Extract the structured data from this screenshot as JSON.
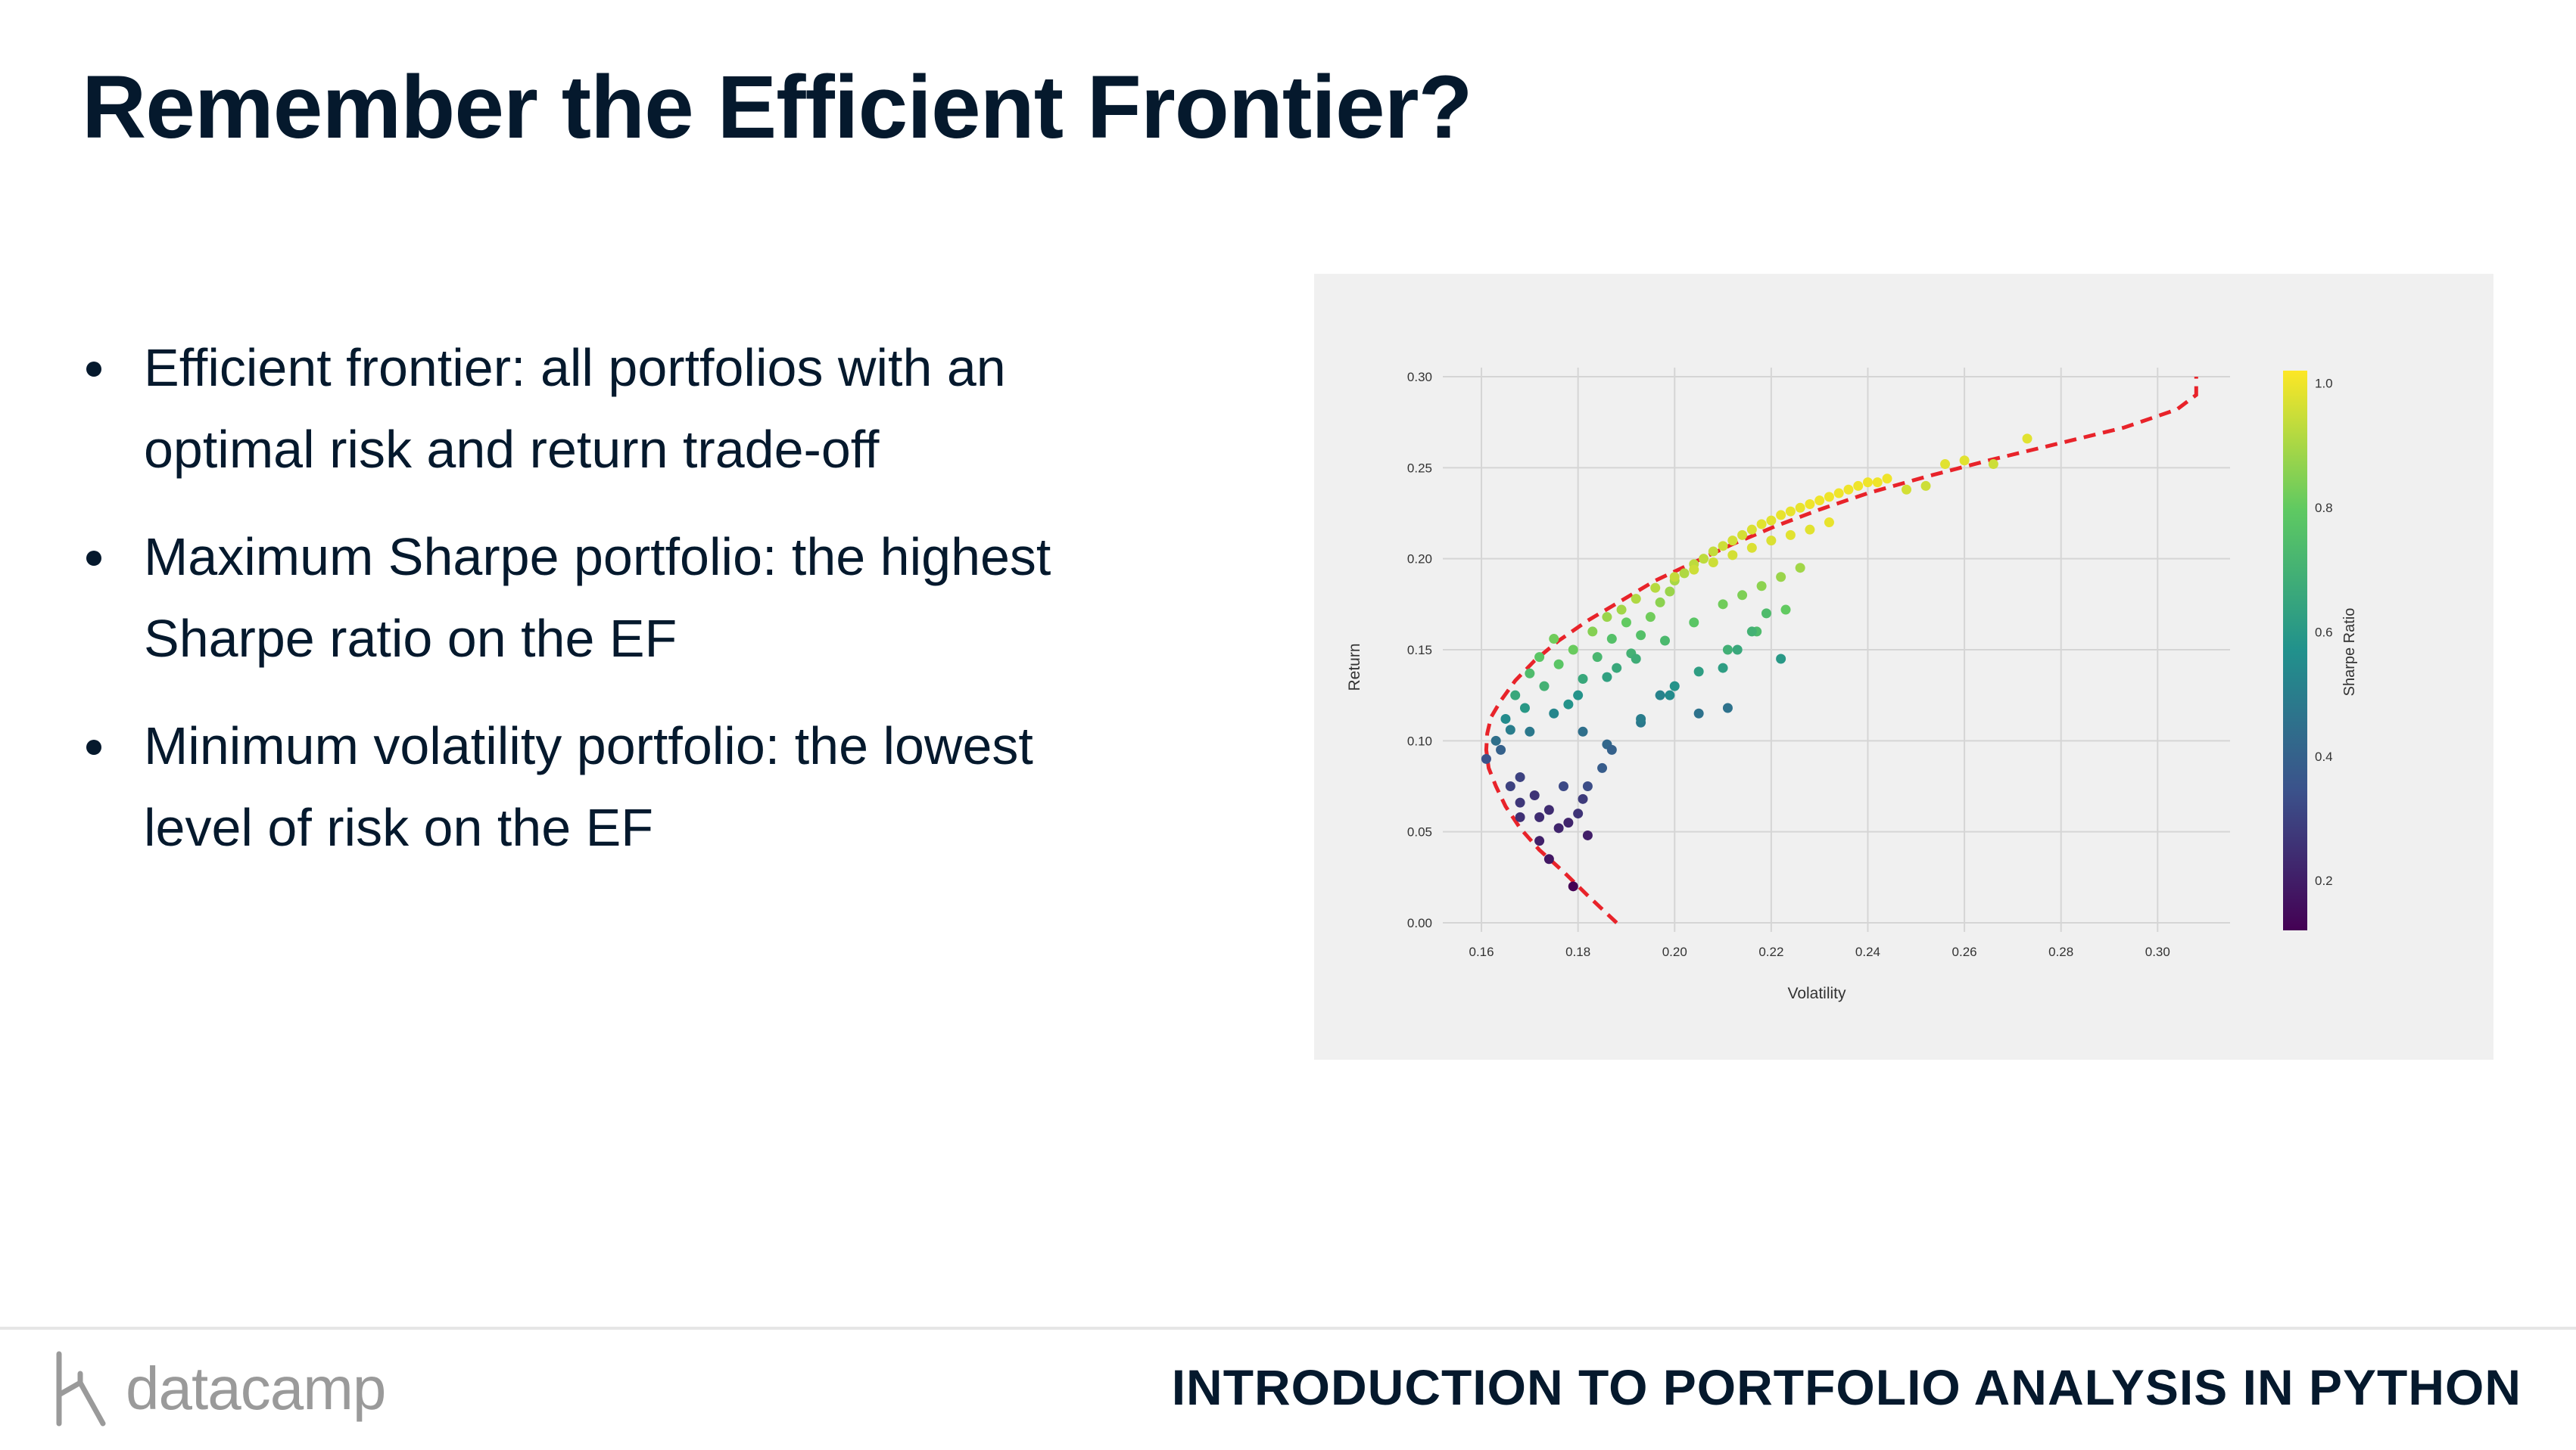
{
  "slide": {
    "title": "Remember the Efficient Frontier?",
    "bullets": [
      {
        "lines": [
          "Efficient frontier: all portfolios with an",
          "optimal risk and return trade-off"
        ]
      },
      {
        "lines": [
          "Maximum Sharpe portfolio: the highest",
          "Sharpe ratio on the EF"
        ]
      },
      {
        "lines": [
          "Minimum volatility portfolio: the lowest",
          "level of risk on the EF"
        ]
      }
    ]
  },
  "footer": {
    "logo_text": "datacamp",
    "course_title": "INTRODUCTION TO PORTFOLIO ANALYSIS IN PYTHON"
  },
  "colors": {
    "title": "#05192d",
    "panel_bg": "#f0f0f0",
    "frontier_line": "#e8232a",
    "grid": "#d5d5d5"
  },
  "chart_data": {
    "type": "scatter",
    "xlabel": "Volatility",
    "ylabel": "Return",
    "xlim": [
      0.152,
      0.315
    ],
    "ylim": [
      -0.005,
      0.305
    ],
    "x_ticks": [
      "0.16",
      "0.18",
      "0.20",
      "0.22",
      "0.24",
      "0.26",
      "0.28",
      "0.30"
    ],
    "y_ticks": [
      "0.00",
      "0.05",
      "0.10",
      "0.15",
      "0.20",
      "0.25",
      "0.30"
    ],
    "grid": true,
    "colorbar": {
      "label": "Sharpe Ratio",
      "colormap": "viridis",
      "ticks": [
        "0.2",
        "0.4",
        "0.6",
        "0.8",
        "1.0"
      ],
      "range": [
        0.12,
        1.02
      ]
    },
    "series": [
      {
        "x": [
          0.161,
          0.163,
          0.165,
          0.167,
          0.17,
          0.172,
          0.175,
          0.168,
          0.171,
          0.174,
          0.178,
          0.18,
          0.182,
          0.185,
          0.178,
          0.181,
          0.184,
          0.187,
          0.19,
          0.188,
          0.191,
          0.193,
          0.195,
          0.197,
          0.199,
          0.2,
          0.202,
          0.204,
          0.206,
          0.208,
          0.21,
          0.212,
          0.214,
          0.216,
          0.218,
          0.22,
          0.222,
          0.224,
          0.226,
          0.228,
          0.23,
          0.232,
          0.234,
          0.236,
          0.238,
          0.24,
          0.242,
          0.244,
          0.248,
          0.252,
          0.256,
          0.26,
          0.266,
          0.273,
          0.164,
          0.166,
          0.169,
          0.173,
          0.176,
          0.179,
          0.183,
          0.186,
          0.189,
          0.192,
          0.196,
          0.2,
          0.204,
          0.208,
          0.212,
          0.216,
          0.22,
          0.224,
          0.228,
          0.232,
          0.17,
          0.175,
          0.18,
          0.186,
          0.192,
          0.198,
          0.204,
          0.21,
          0.214,
          0.218,
          0.222,
          0.226,
          0.166,
          0.168,
          0.172,
          0.176,
          0.181,
          0.186,
          0.193,
          0.199,
          0.205,
          0.211,
          0.217,
          0.223,
          0.179,
          0.182,
          0.172,
          0.174,
          0.168,
          0.181,
          0.2,
          0.21,
          0.213,
          0.216,
          0.219,
          0.222,
          0.211,
          0.197,
          0.205,
          0.187,
          0.193,
          0.177
        ],
        "y": [
          0.09,
          0.1,
          0.112,
          0.125,
          0.137,
          0.146,
          0.156,
          0.08,
          0.07,
          0.062,
          0.055,
          0.06,
          0.075,
          0.085,
          0.12,
          0.134,
          0.146,
          0.156,
          0.165,
          0.14,
          0.148,
          0.158,
          0.168,
          0.176,
          0.182,
          0.188,
          0.192,
          0.197,
          0.2,
          0.204,
          0.207,
          0.21,
          0.213,
          0.216,
          0.219,
          0.221,
          0.224,
          0.226,
          0.228,
          0.23,
          0.232,
          0.234,
          0.236,
          0.238,
          0.24,
          0.242,
          0.242,
          0.244,
          0.238,
          0.24,
          0.252,
          0.254,
          0.252,
          0.266,
          0.095,
          0.106,
          0.118,
          0.13,
          0.142,
          0.15,
          0.16,
          0.168,
          0.172,
          0.178,
          0.184,
          0.19,
          0.194,
          0.198,
          0.202,
          0.206,
          0.21,
          0.213,
          0.216,
          0.22,
          0.105,
          0.115,
          0.125,
          0.135,
          0.145,
          0.155,
          0.165,
          0.175,
          0.18,
          0.185,
          0.19,
          0.195,
          0.075,
          0.066,
          0.058,
          0.052,
          0.068,
          0.098,
          0.11,
          0.125,
          0.138,
          0.15,
          0.16,
          0.172,
          0.02,
          0.048,
          0.045,
          0.035,
          0.058,
          0.105,
          0.13,
          0.14,
          0.15,
          0.16,
          0.17,
          0.145,
          0.118,
          0.125,
          0.115,
          0.095,
          0.112,
          0.075
        ],
        "sharpe": [
          0.35,
          0.45,
          0.55,
          0.66,
          0.74,
          0.78,
          0.82,
          0.3,
          0.26,
          0.24,
          0.22,
          0.26,
          0.33,
          0.38,
          0.58,
          0.66,
          0.72,
          0.76,
          0.8,
          0.66,
          0.7,
          0.76,
          0.82,
          0.86,
          0.88,
          0.9,
          0.91,
          0.93,
          0.93,
          0.94,
          0.95,
          0.96,
          0.96,
          0.97,
          0.98,
          0.98,
          0.99,
          0.99,
          0.99,
          1.0,
          1.0,
          1.0,
          1.0,
          1.0,
          1.0,
          1.0,
          1.0,
          1.0,
          0.96,
          0.95,
          0.98,
          0.98,
          0.95,
          0.98,
          0.4,
          0.5,
          0.6,
          0.7,
          0.78,
          0.81,
          0.85,
          0.88,
          0.89,
          0.91,
          0.92,
          0.94,
          0.95,
          0.95,
          0.96,
          0.97,
          0.97,
          0.98,
          0.98,
          0.99,
          0.48,
          0.53,
          0.58,
          0.63,
          0.68,
          0.73,
          0.78,
          0.82,
          0.84,
          0.86,
          0.88,
          0.89,
          0.3,
          0.27,
          0.24,
          0.22,
          0.28,
          0.42,
          0.48,
          0.55,
          0.62,
          0.69,
          0.74,
          0.8,
          0.12,
          0.2,
          0.21,
          0.18,
          0.25,
          0.45,
          0.58,
          0.62,
          0.66,
          0.7,
          0.74,
          0.6,
          0.46,
          0.52,
          0.46,
          0.4,
          0.5,
          0.32
        ]
      }
    ],
    "frontier_x": [
      0.188,
      0.182,
      0.177,
      0.172,
      0.168,
      0.165,
      0.163,
      0.1615,
      0.161,
      0.1612,
      0.162,
      0.164,
      0.167,
      0.171,
      0.176,
      0.182,
      0.189,
      0.196,
      0.204,
      0.212,
      0.221,
      0.23,
      0.24,
      0.252,
      0.265,
      0.279,
      0.293,
      0.304,
      0.308,
      0.308
    ],
    "frontier_y": [
      0.0,
      0.015,
      0.028,
      0.04,
      0.052,
      0.064,
      0.075,
      0.085,
      0.095,
      0.104,
      0.113,
      0.122,
      0.133,
      0.144,
      0.155,
      0.166,
      0.177,
      0.188,
      0.198,
      0.208,
      0.218,
      0.227,
      0.236,
      0.245,
      0.254,
      0.263,
      0.272,
      0.282,
      0.29,
      0.3
    ]
  }
}
